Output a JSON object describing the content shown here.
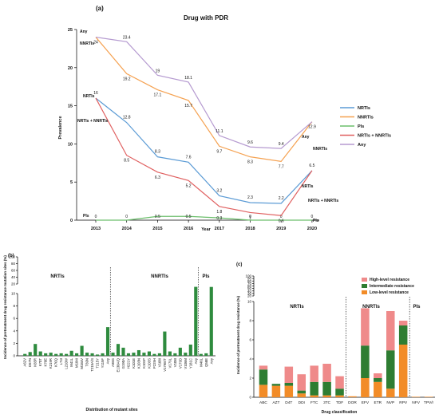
{
  "chart_data": [
    {
      "panel": "(a)",
      "type": "line",
      "title": "Drug with PDR",
      "xlabel": "Year",
      "ylabel": "Prevalence",
      "x": [
        "2013",
        "2014",
        "2015",
        "2016",
        "2017",
        "2018",
        "2019",
        "2020"
      ],
      "yticks": [
        "0",
        "5",
        "10",
        "15",
        "20",
        "25"
      ],
      "ylim": [
        0,
        25
      ],
      "legend_position": "right",
      "series": [
        {
          "name": "NRTIs",
          "color": "#5b9bd5",
          "values": [
            16,
            12.8,
            8.3,
            7.6,
            3.2,
            2.3,
            2.2,
            6.5
          ],
          "labels": [
            "16",
            "12.8",
            "8.3",
            "7.6",
            "3.2",
            "2.3",
            "2.2",
            "6.5"
          ]
        },
        {
          "name": "NNRTIs",
          "color": "#f5a150",
          "values": [
            24,
            19.2,
            17.1,
            15.7,
            9.7,
            8.3,
            7.7,
            12.9
          ],
          "labels": [
            "24",
            "19.2",
            "17.1",
            "15.7",
            "9.7",
            "8.3",
            "7.7",
            "12.9"
          ]
        },
        {
          "name": "PIs",
          "color": "#6cbf6c",
          "values": [
            0,
            0,
            0.5,
            0.5,
            0.3,
            0,
            0,
            0
          ],
          "labels": [
            "0",
            "0",
            "0.5",
            "0.5",
            "0.3",
            "0",
            "0",
            "0"
          ]
        },
        {
          "name": "NRTIs + NNRTIs",
          "color": "#e06060",
          "values": [
            16,
            8.5,
            6.3,
            5.2,
            1.8,
            1,
            0.6,
            6.5
          ],
          "labels": [
            "",
            "8.5",
            "6.3",
            "5.2",
            "1.8",
            "1",
            "0.6",
            ""
          ]
        },
        {
          "name": "Any",
          "color": "#b59ad0",
          "values": [
            24,
            23.4,
            19,
            18.1,
            11.1,
            9.6,
            9.4,
            12.9
          ],
          "labels": [
            "",
            "23.4",
            "19",
            "18.1",
            "11.1",
            "9.6",
            "9.4",
            ""
          ]
        }
      ],
      "side_labels": {
        "left": [
          "Any",
          "NNRTIs",
          "NRTIs",
          "NRTIs + NNRTIs",
          "PIs"
        ],
        "right": [
          "Any",
          "NNRTIs",
          "NRTIs",
          "NRTIs + NNRTIs",
          "PIs"
        ]
      }
    },
    {
      "panel": "(b)",
      "type": "bar",
      "xlabel": "Distribution of mutant sites",
      "ylabel": "Incidence of pretreatment drug resistance mutation sites (%)",
      "ylim": [
        0,
        100
      ],
      "axis_break": [
        10,
        20
      ],
      "yticks": [
        "0",
        "2",
        "4",
        "6",
        "8",
        "10",
        "20",
        "40",
        "60",
        "80",
        "100"
      ],
      "color": "#2e8b3e",
      "groups": [
        {
          "label": "NRTIs",
          "start": 0,
          "end": 16
        },
        {
          "label": "NNRTIs",
          "start": 17,
          "end": 41
        },
        {
          "label": "PIs",
          "start": 42,
          "end": 45
        }
      ],
      "categories": [
        "A62V",
        "D67N",
        "K65R",
        "K70T",
        "K70E",
        "K219R",
        "K70Q",
        "L74I",
        "L210W",
        "M41L",
        "M184I",
        "M184V",
        "T69N",
        "T215A/S",
        "T215Y",
        "Y115F",
        "Any",
        "A98G",
        "E138A/Q",
        "G190A",
        "H221Y",
        "K101E",
        "K103N",
        "K101P",
        "K103S",
        "P225H",
        "V108I",
        "V179E/T",
        "V179L",
        "V108I",
        "V179D",
        "V106M",
        "Y181C",
        "Any",
        "M46L",
        "Q58E",
        "Any"
      ],
      "values": [
        0.3,
        0.6,
        1.9,
        0.7,
        0.4,
        0.5,
        0.3,
        0.4,
        0.3,
        0.8,
        0.4,
        1.6,
        0.5,
        0.4,
        0.2,
        0.4,
        4.6,
        0.5,
        1.9,
        1.3,
        0.4,
        0.5,
        0.9,
        0.5,
        0.7,
        0.3,
        0.4,
        3.9,
        0.7,
        0.4,
        1.3,
        0.5,
        1.8,
        11.6,
        0.3,
        0.4,
        11.3
      ],
      "group_of": [
        0,
        0,
        0,
        0,
        0,
        0,
        0,
        0,
        0,
        0,
        0,
        0,
        0,
        0,
        0,
        0,
        0,
        1,
        1,
        1,
        1,
        1,
        1,
        1,
        1,
        1,
        1,
        1,
        1,
        1,
        1,
        1,
        1,
        1,
        2,
        2,
        2
      ]
    },
    {
      "panel": "(c)",
      "type": "bar",
      "stacked": true,
      "xlabel": "Drug classification",
      "ylabel": "Incidence of pretreatment drug resistance (%)",
      "ylim": [
        0,
        100
      ],
      "axis_break": [
        10,
        20
      ],
      "yticks": [
        "0",
        "2",
        "4",
        "6",
        "8",
        "10",
        "20",
        "30",
        "40",
        "50",
        "60",
        "70",
        "80",
        "90",
        "100"
      ],
      "legend_position": "top-right",
      "groups": [
        {
          "label": "NRTIs",
          "start": 0,
          "end": 6
        },
        {
          "label": "NNRTIs",
          "start": 7,
          "end": 11
        },
        {
          "label": "PIs",
          "start": 12,
          "end": 13
        }
      ],
      "categories": [
        "ABC",
        "AZT",
        "D4T",
        "DDI",
        "FTC",
        "3TC",
        "TDF",
        "DOR",
        "EFV",
        "ETR",
        "NVP",
        "RPV",
        "NFV",
        "TPV/r"
      ],
      "series": [
        {
          "name": "Low-level resistance",
          "color": "#f28c28",
          "values": [
            1.3,
            1.2,
            1.2,
            0.4,
            0.2,
            0.2,
            0.2,
            0.1,
            2.0,
            1.6,
            0.9,
            5.5,
            0.05,
            0.05
          ]
        },
        {
          "name": "Intermediate resistance",
          "color": "#2e7d32",
          "values": [
            1.6,
            0.2,
            0.3,
            0.3,
            1.4,
            1.4,
            0.7,
            0.0,
            3.4,
            0.4,
            4.0,
            2.0,
            0.0,
            0.0
          ]
        },
        {
          "name": "High-level resistance",
          "color": "#ef8a8a",
          "values": [
            0.4,
            0.0,
            1.7,
            1.7,
            1.7,
            1.9,
            1.3,
            0.0,
            3.9,
            0.5,
            4.1,
            0.5,
            0.0,
            0.0
          ]
        }
      ]
    }
  ]
}
